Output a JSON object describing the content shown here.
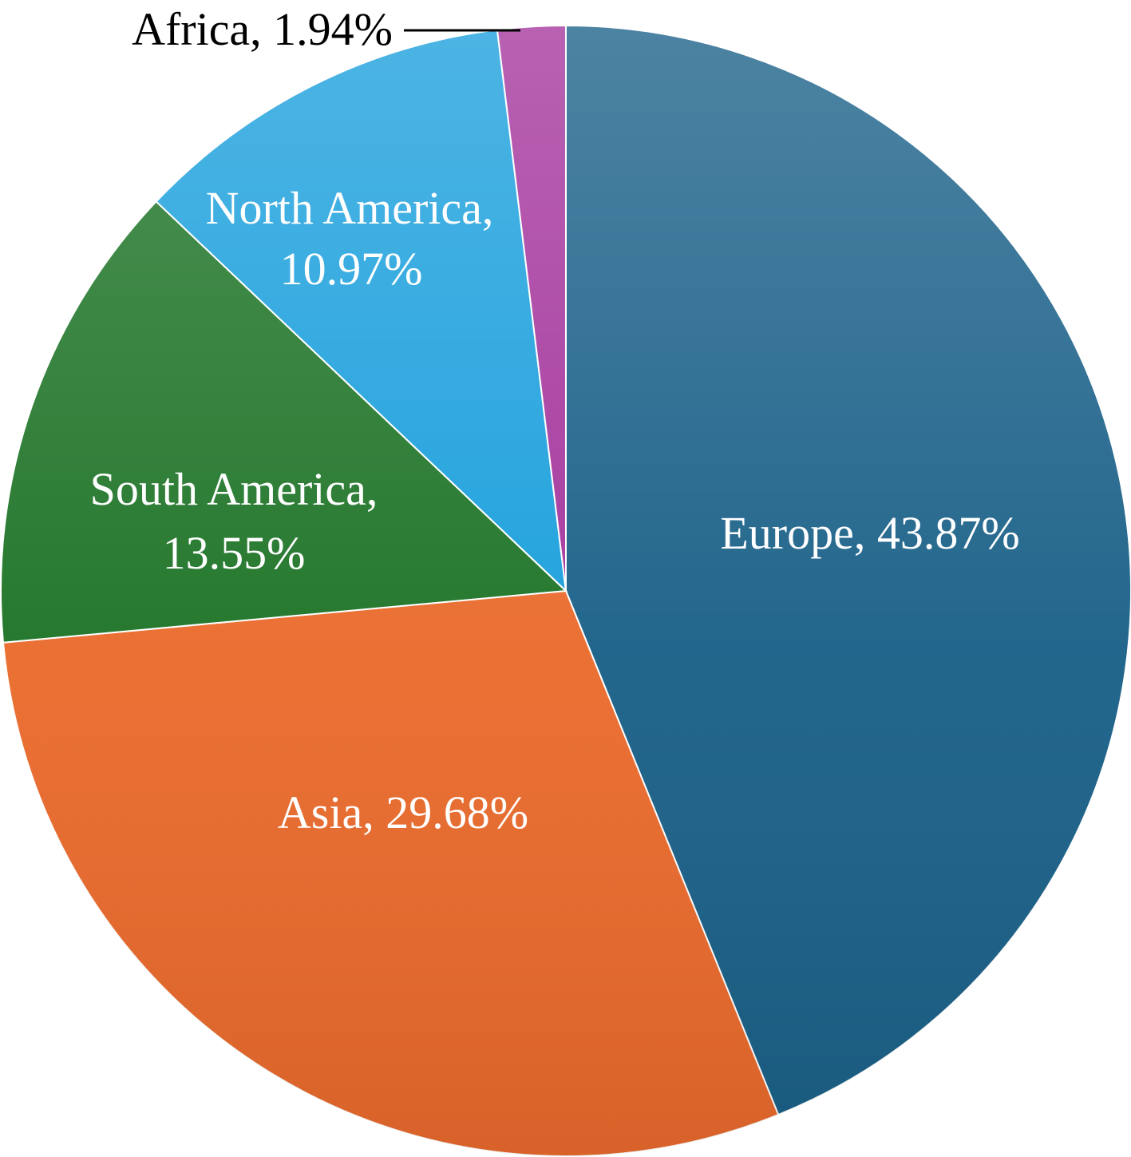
{
  "chart_data": {
    "type": "pie",
    "slices": [
      {
        "name": "Europe",
        "value": 43.87,
        "value_label": "43.87%",
        "color": "#1a6088"
      },
      {
        "name": "Asia",
        "value": 29.68,
        "value_label": "29.68%",
        "color": "#ea6a2c"
      },
      {
        "name": "South America",
        "value": 13.55,
        "value_label": "13.55%",
        "color": "#1d7326"
      },
      {
        "name": "North America",
        "value": 10.97,
        "value_label": "10.97%",
        "color": "#1a9fdc"
      },
      {
        "name": "Africa",
        "value": 1.94,
        "value_label": "1.94%",
        "color": "#a4359c"
      }
    ],
    "labels": {
      "europe": "Europe, 43.87%",
      "asia": "Asia, 29.68%",
      "south_america_line1": "South America,",
      "south_america_line2": "13.55%",
      "north_america_line1": "North America,",
      "north_america_line2": "10.97%",
      "africa": "Africa, 1.94%"
    },
    "start": "12 o'clock",
    "direction": "clockwise",
    "legend": "none"
  }
}
